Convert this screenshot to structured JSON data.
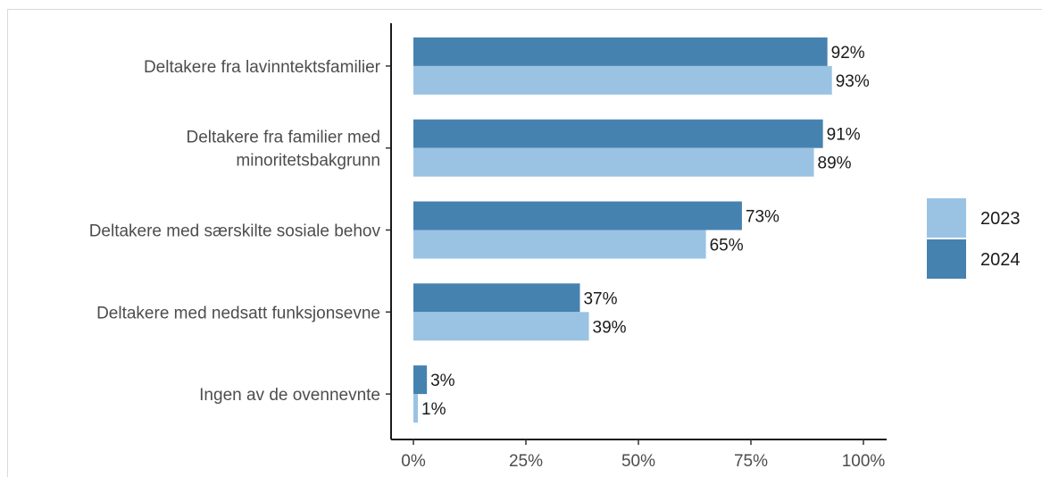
{
  "chart_data": {
    "type": "bar",
    "orientation": "horizontal",
    "categories": [
      "Deltakere fra lavinntektsfamilier",
      "Deltakere fra familier med minoritetsbakgrunn",
      "Deltakere med særskilte sosiale behov",
      "Deltakere med nedsatt funksjonsevne",
      "Ingen av de ovennevnte"
    ],
    "category_lines": [
      [
        "Deltakere fra lavinntektsfamilier"
      ],
      [
        "Deltakere fra familier med",
        "minoritetsbakgrunn"
      ],
      [
        "Deltakere med særskilte sosiale behov"
      ],
      [
        "Deltakere med nedsatt funksjonsevne"
      ],
      [
        "Ingen av de ovennevnte"
      ]
    ],
    "series": [
      {
        "name": "2024",
        "color": "#4682b0",
        "values": [
          92,
          91,
          73,
          37,
          3
        ],
        "labels": [
          "92%",
          "91%",
          "73%",
          "37%",
          "3%"
        ]
      },
      {
        "name": "2023",
        "color": "#9ac3e3",
        "values": [
          93,
          89,
          65,
          39,
          1
        ],
        "labels": [
          "93%",
          "89%",
          "65%",
          "39%",
          "1%"
        ]
      }
    ],
    "xlim": [
      0,
      100
    ],
    "x_ticks": [
      0,
      25,
      50,
      75,
      100
    ],
    "x_tick_labels": [
      "0%",
      "25%",
      "50%",
      "75%",
      "100%"
    ],
    "legend": {
      "position": "right",
      "entries": [
        {
          "name": "2023",
          "color": "#9ac3e3"
        },
        {
          "name": "2024",
          "color": "#4682b0"
        }
      ]
    },
    "grid": false
  }
}
